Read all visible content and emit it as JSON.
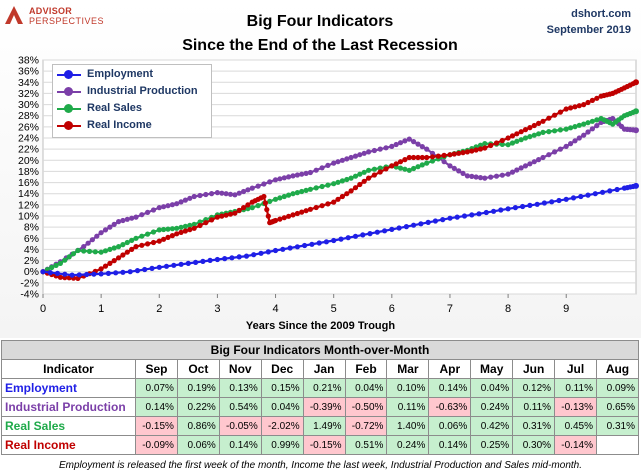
{
  "header": {
    "logo_top": "ADVISOR",
    "logo_bottom": "PERSPECTIVES",
    "title_line1": "Big Four Indicators",
    "title_line2": "Since the End of the Last Recession",
    "source": "dshort.com",
    "date": "September 2019"
  },
  "colors": {
    "employment": "#1f1fe6",
    "industrial_production": "#7b3fa8",
    "real_sales": "#1faa4a",
    "real_income": "#c00000",
    "positive_cell": "#c6efce",
    "negative_cell": "#ffc7ce"
  },
  "chart_data": {
    "type": "line",
    "title": "Big Four Indicators Since the End of the Last Recession",
    "xlabel": "Years Since the 2009 Trough",
    "ylabel": "",
    "xlim": [
      0,
      10.2
    ],
    "ylim": [
      -4,
      38
    ],
    "x_ticks": [
      "0",
      "1",
      "2",
      "3",
      "4",
      "5",
      "6",
      "7",
      "8",
      "9"
    ],
    "y_ticks": [
      "-4%",
      "-2%",
      "0%",
      "2%",
      "4%",
      "6%",
      "8%",
      "10%",
      "12%",
      "14%",
      "16%",
      "18%",
      "20%",
      "22%",
      "24%",
      "26%",
      "28%",
      "30%",
      "32%",
      "34%",
      "36%",
      "38%"
    ],
    "grid": true,
    "legend_position": "top-left",
    "series": [
      {
        "name": "Employment",
        "color_key": "employment",
        "points": [
          [
            0,
            0
          ],
          [
            0.5,
            -0.6
          ],
          [
            1,
            -0.4
          ],
          [
            1.5,
            0
          ],
          [
            2,
            0.8
          ],
          [
            2.5,
            1.5
          ],
          [
            3,
            2.2
          ],
          [
            3.5,
            2.8
          ],
          [
            4,
            3.8
          ],
          [
            4.5,
            4.7
          ],
          [
            5,
            5.6
          ],
          [
            5.5,
            6.6
          ],
          [
            6,
            7.6
          ],
          [
            6.5,
            8.6
          ],
          [
            7,
            9.6
          ],
          [
            7.5,
            10.4
          ],
          [
            8,
            11.3
          ],
          [
            8.5,
            12.1
          ],
          [
            9,
            13
          ],
          [
            9.5,
            14
          ],
          [
            10,
            15
          ],
          [
            10.2,
            15.4
          ]
        ]
      },
      {
        "name": "Industrial Production",
        "color_key": "industrial_production",
        "points": [
          [
            0,
            0
          ],
          [
            0.3,
            1.8
          ],
          [
            0.7,
            4.5
          ],
          [
            1,
            7
          ],
          [
            1.3,
            9
          ],
          [
            1.6,
            9.8
          ],
          [
            2,
            11.5
          ],
          [
            2.3,
            12.2
          ],
          [
            2.6,
            13.5
          ],
          [
            3,
            14.2
          ],
          [
            3.3,
            13.8
          ],
          [
            3.6,
            15
          ],
          [
            4,
            16.5
          ],
          [
            4.3,
            17.2
          ],
          [
            4.6,
            17.8
          ],
          [
            5,
            19.5
          ],
          [
            5.3,
            20.5
          ],
          [
            5.6,
            21.5
          ],
          [
            6,
            22.5
          ],
          [
            6.3,
            23.8
          ],
          [
            6.6,
            22
          ],
          [
            7,
            19
          ],
          [
            7.3,
            17.2
          ],
          [
            7.6,
            16.8
          ],
          [
            8,
            17.5
          ],
          [
            8.3,
            19
          ],
          [
            8.6,
            20.5
          ],
          [
            9,
            22.5
          ],
          [
            9.3,
            24.5
          ],
          [
            9.6,
            26.8
          ],
          [
            9.8,
            27.5
          ],
          [
            10,
            25.6
          ],
          [
            10.2,
            25.4
          ]
        ]
      },
      {
        "name": "Real Sales",
        "color_key": "real_sales",
        "points": [
          [
            0,
            0
          ],
          [
            0.3,
            1.5
          ],
          [
            0.6,
            3.8
          ],
          [
            1,
            3.5
          ],
          [
            1.3,
            4.5
          ],
          [
            1.6,
            6
          ],
          [
            2,
            7.5
          ],
          [
            2.3,
            7.8
          ],
          [
            2.6,
            8.5
          ],
          [
            3,
            10.2
          ],
          [
            3.3,
            10.8
          ],
          [
            3.6,
            11.5
          ],
          [
            4,
            13
          ],
          [
            4.3,
            14
          ],
          [
            4.6,
            14.8
          ],
          [
            5,
            15.8
          ],
          [
            5.3,
            16.8
          ],
          [
            5.6,
            18.2
          ],
          [
            6,
            19
          ],
          [
            6.3,
            18.2
          ],
          [
            6.6,
            19.5
          ],
          [
            7,
            21
          ],
          [
            7.3,
            21.8
          ],
          [
            7.6,
            23
          ],
          [
            8,
            22.8
          ],
          [
            8.3,
            24
          ],
          [
            8.6,
            25
          ],
          [
            9,
            25.6
          ],
          [
            9.3,
            26.5
          ],
          [
            9.6,
            27.5
          ],
          [
            9.8,
            26.5
          ],
          [
            10,
            28
          ],
          [
            10.2,
            28.8
          ]
        ]
      },
      {
        "name": "Real Income",
        "color_key": "real_income",
        "points": [
          [
            0,
            0
          ],
          [
            0.3,
            -1
          ],
          [
            0.6,
            -1.2
          ],
          [
            1,
            0.5
          ],
          [
            1.3,
            2.5
          ],
          [
            1.6,
            4.5
          ],
          [
            2,
            5.5
          ],
          [
            2.3,
            6.8
          ],
          [
            2.6,
            7.8
          ],
          [
            3,
            9.8
          ],
          [
            3.3,
            10.5
          ],
          [
            3.6,
            12.5
          ],
          [
            3.8,
            13.5
          ],
          [
            3.9,
            8.8
          ],
          [
            4,
            9.2
          ],
          [
            4.3,
            10.2
          ],
          [
            4.6,
            11.2
          ],
          [
            5,
            12.5
          ],
          [
            5.3,
            14.5
          ],
          [
            5.6,
            16.8
          ],
          [
            6,
            19
          ],
          [
            6.3,
            20.5
          ],
          [
            6.6,
            20.5
          ],
          [
            7,
            21
          ],
          [
            7.3,
            21.5
          ],
          [
            7.6,
            22.2
          ],
          [
            8,
            24
          ],
          [
            8.3,
            25.5
          ],
          [
            8.6,
            27
          ],
          [
            9,
            29.2
          ],
          [
            9.3,
            30
          ],
          [
            9.6,
            31.5
          ],
          [
            9.8,
            32
          ],
          [
            10,
            33
          ],
          [
            10.2,
            34
          ]
        ]
      }
    ]
  },
  "table": {
    "title": "Big Four Indicators Month-over-Month",
    "header_label": "Indicator",
    "months": [
      "Sep",
      "Oct",
      "Nov",
      "Dec",
      "Jan",
      "Feb",
      "Mar",
      "Apr",
      "May",
      "Jun",
      "Jul",
      "Aug"
    ],
    "rows": [
      {
        "name": "Employment",
        "color_key": "employment",
        "values": [
          "0.07%",
          "0.19%",
          "0.13%",
          "0.15%",
          "0.21%",
          "0.04%",
          "0.10%",
          "0.14%",
          "0.04%",
          "0.12%",
          "0.11%",
          "0.09%"
        ]
      },
      {
        "name": "Industrial Production",
        "color_key": "industrial_production",
        "values": [
          "0.14%",
          "0.22%",
          "0.54%",
          "0.04%",
          "-0.39%",
          "-0.50%",
          "0.11%",
          "-0.63%",
          "0.24%",
          "0.11%",
          "-0.13%",
          "0.65%"
        ]
      },
      {
        "name": "Real Sales",
        "color_key": "real_sales",
        "values": [
          "-0.15%",
          "0.86%",
          "-0.05%",
          "-2.02%",
          "1.49%",
          "-0.72%",
          "1.40%",
          "0.06%",
          "0.42%",
          "0.31%",
          "0.45%",
          "0.31%"
        ]
      },
      {
        "name": "Real Income",
        "color_key": "real_income",
        "values": [
          "-0.09%",
          "0.06%",
          "0.14%",
          "0.99%",
          "-0.15%",
          "0.51%",
          "0.24%",
          "0.14%",
          "0.25%",
          "0.30%",
          "-0.14%",
          ""
        ]
      }
    ]
  },
  "footnote": "Employment is released the first week of the month, Income the last week, Industrial Production and Sales mid-month."
}
